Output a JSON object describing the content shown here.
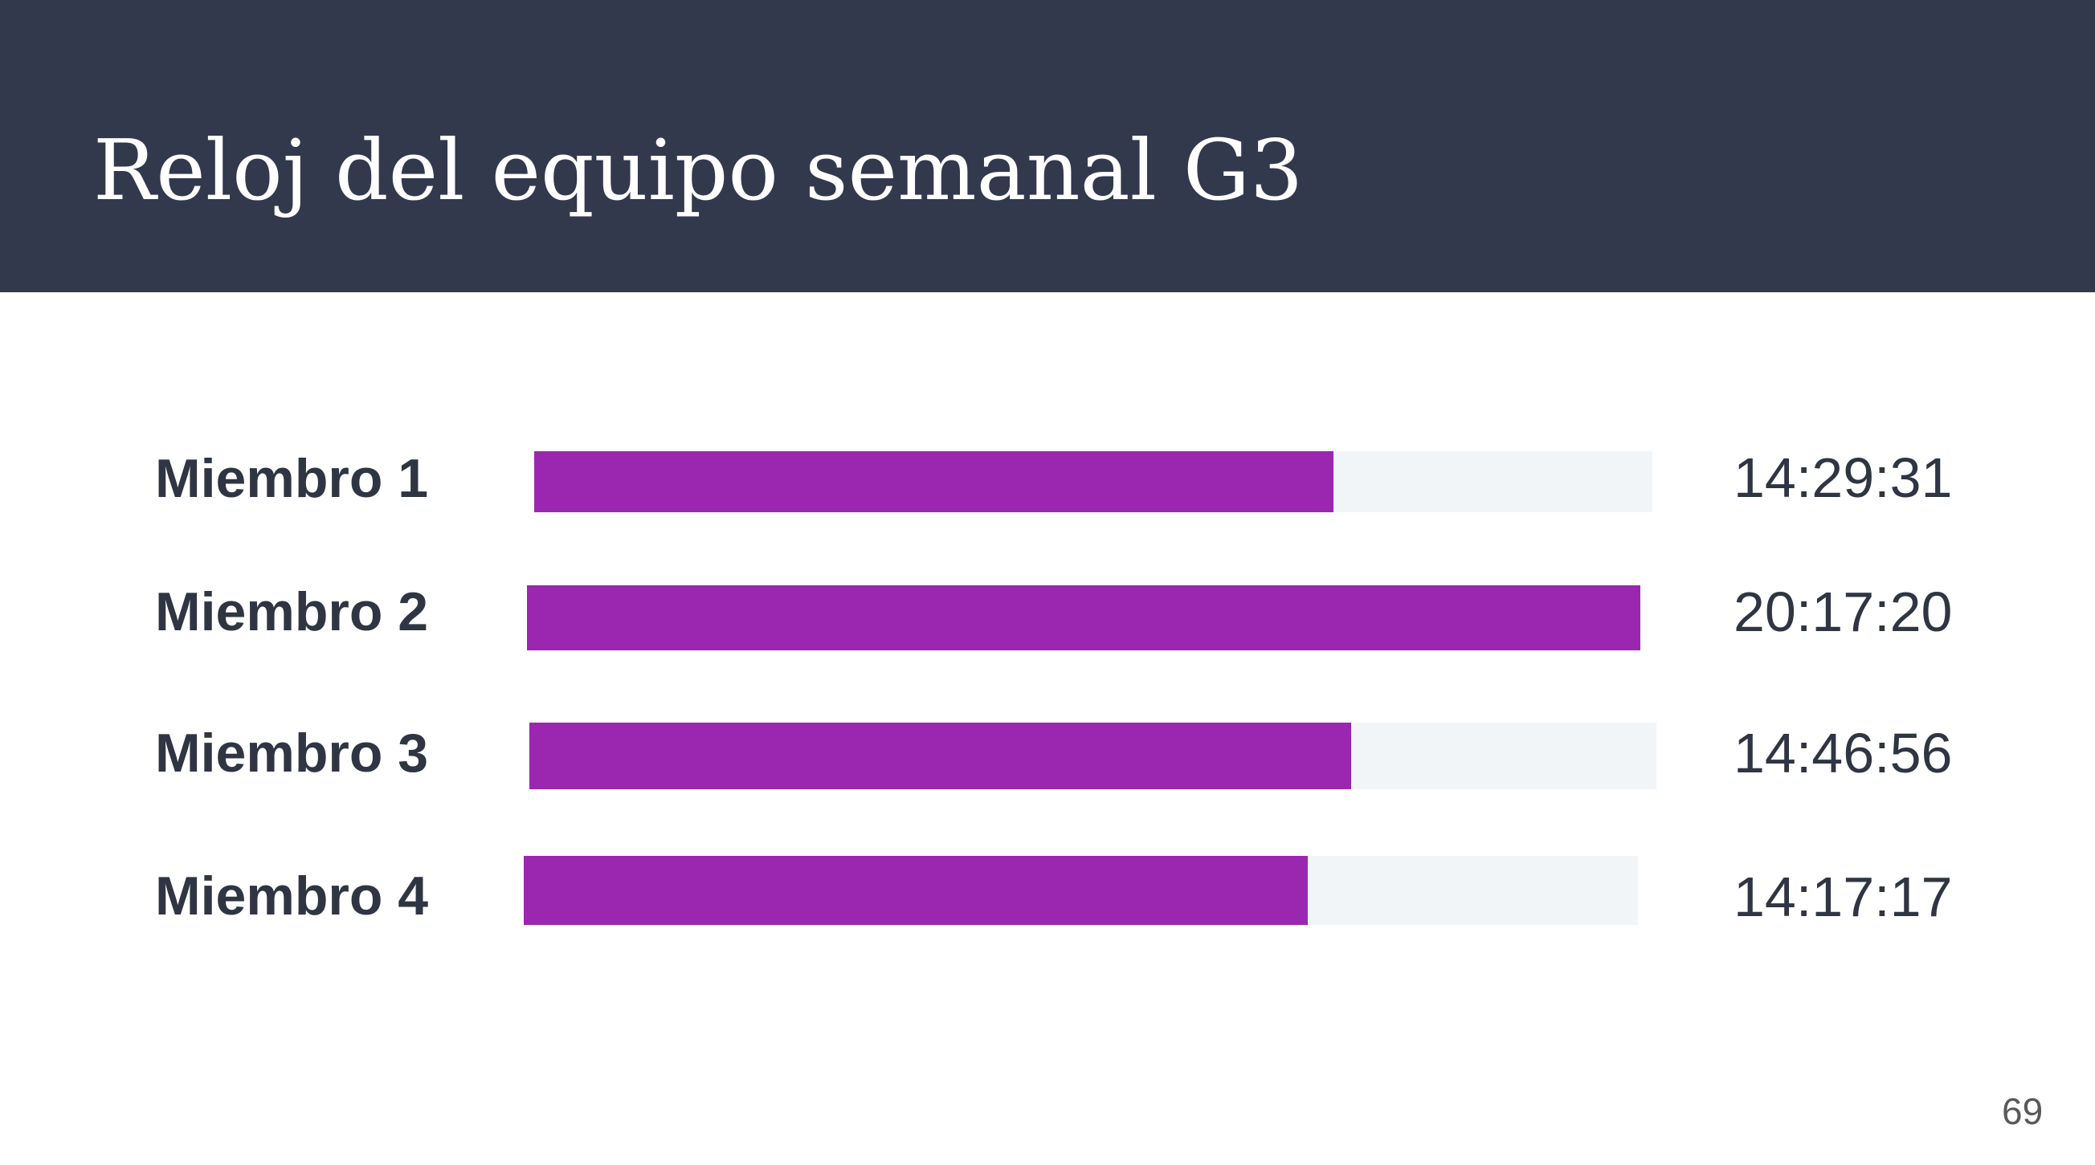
{
  "slide": {
    "title": "Reloj del equipo semanal G3",
    "page_number": "69"
  },
  "colors": {
    "header_background": "#32394d",
    "bar_fill": "#9b27b0",
    "bar_track": "#f2f5f8",
    "text": "#2f3542"
  },
  "chart_data": {
    "type": "bar",
    "orientation": "horizontal",
    "title": "",
    "categories": [
      "Miembro 1",
      "Miembro 2",
      "Miembro 3",
      "Miembro 4"
    ],
    "value_labels": [
      "14:29:31",
      "20:17:20",
      "14:46:56",
      "14:17:17"
    ],
    "values": [
      52171,
      73040,
      53216,
      51437
    ],
    "fill_fractions": [
      0.715,
      1.0,
      0.729,
      0.704
    ],
    "xlabel": "",
    "ylabel": "",
    "grid": false,
    "legend": "none"
  }
}
